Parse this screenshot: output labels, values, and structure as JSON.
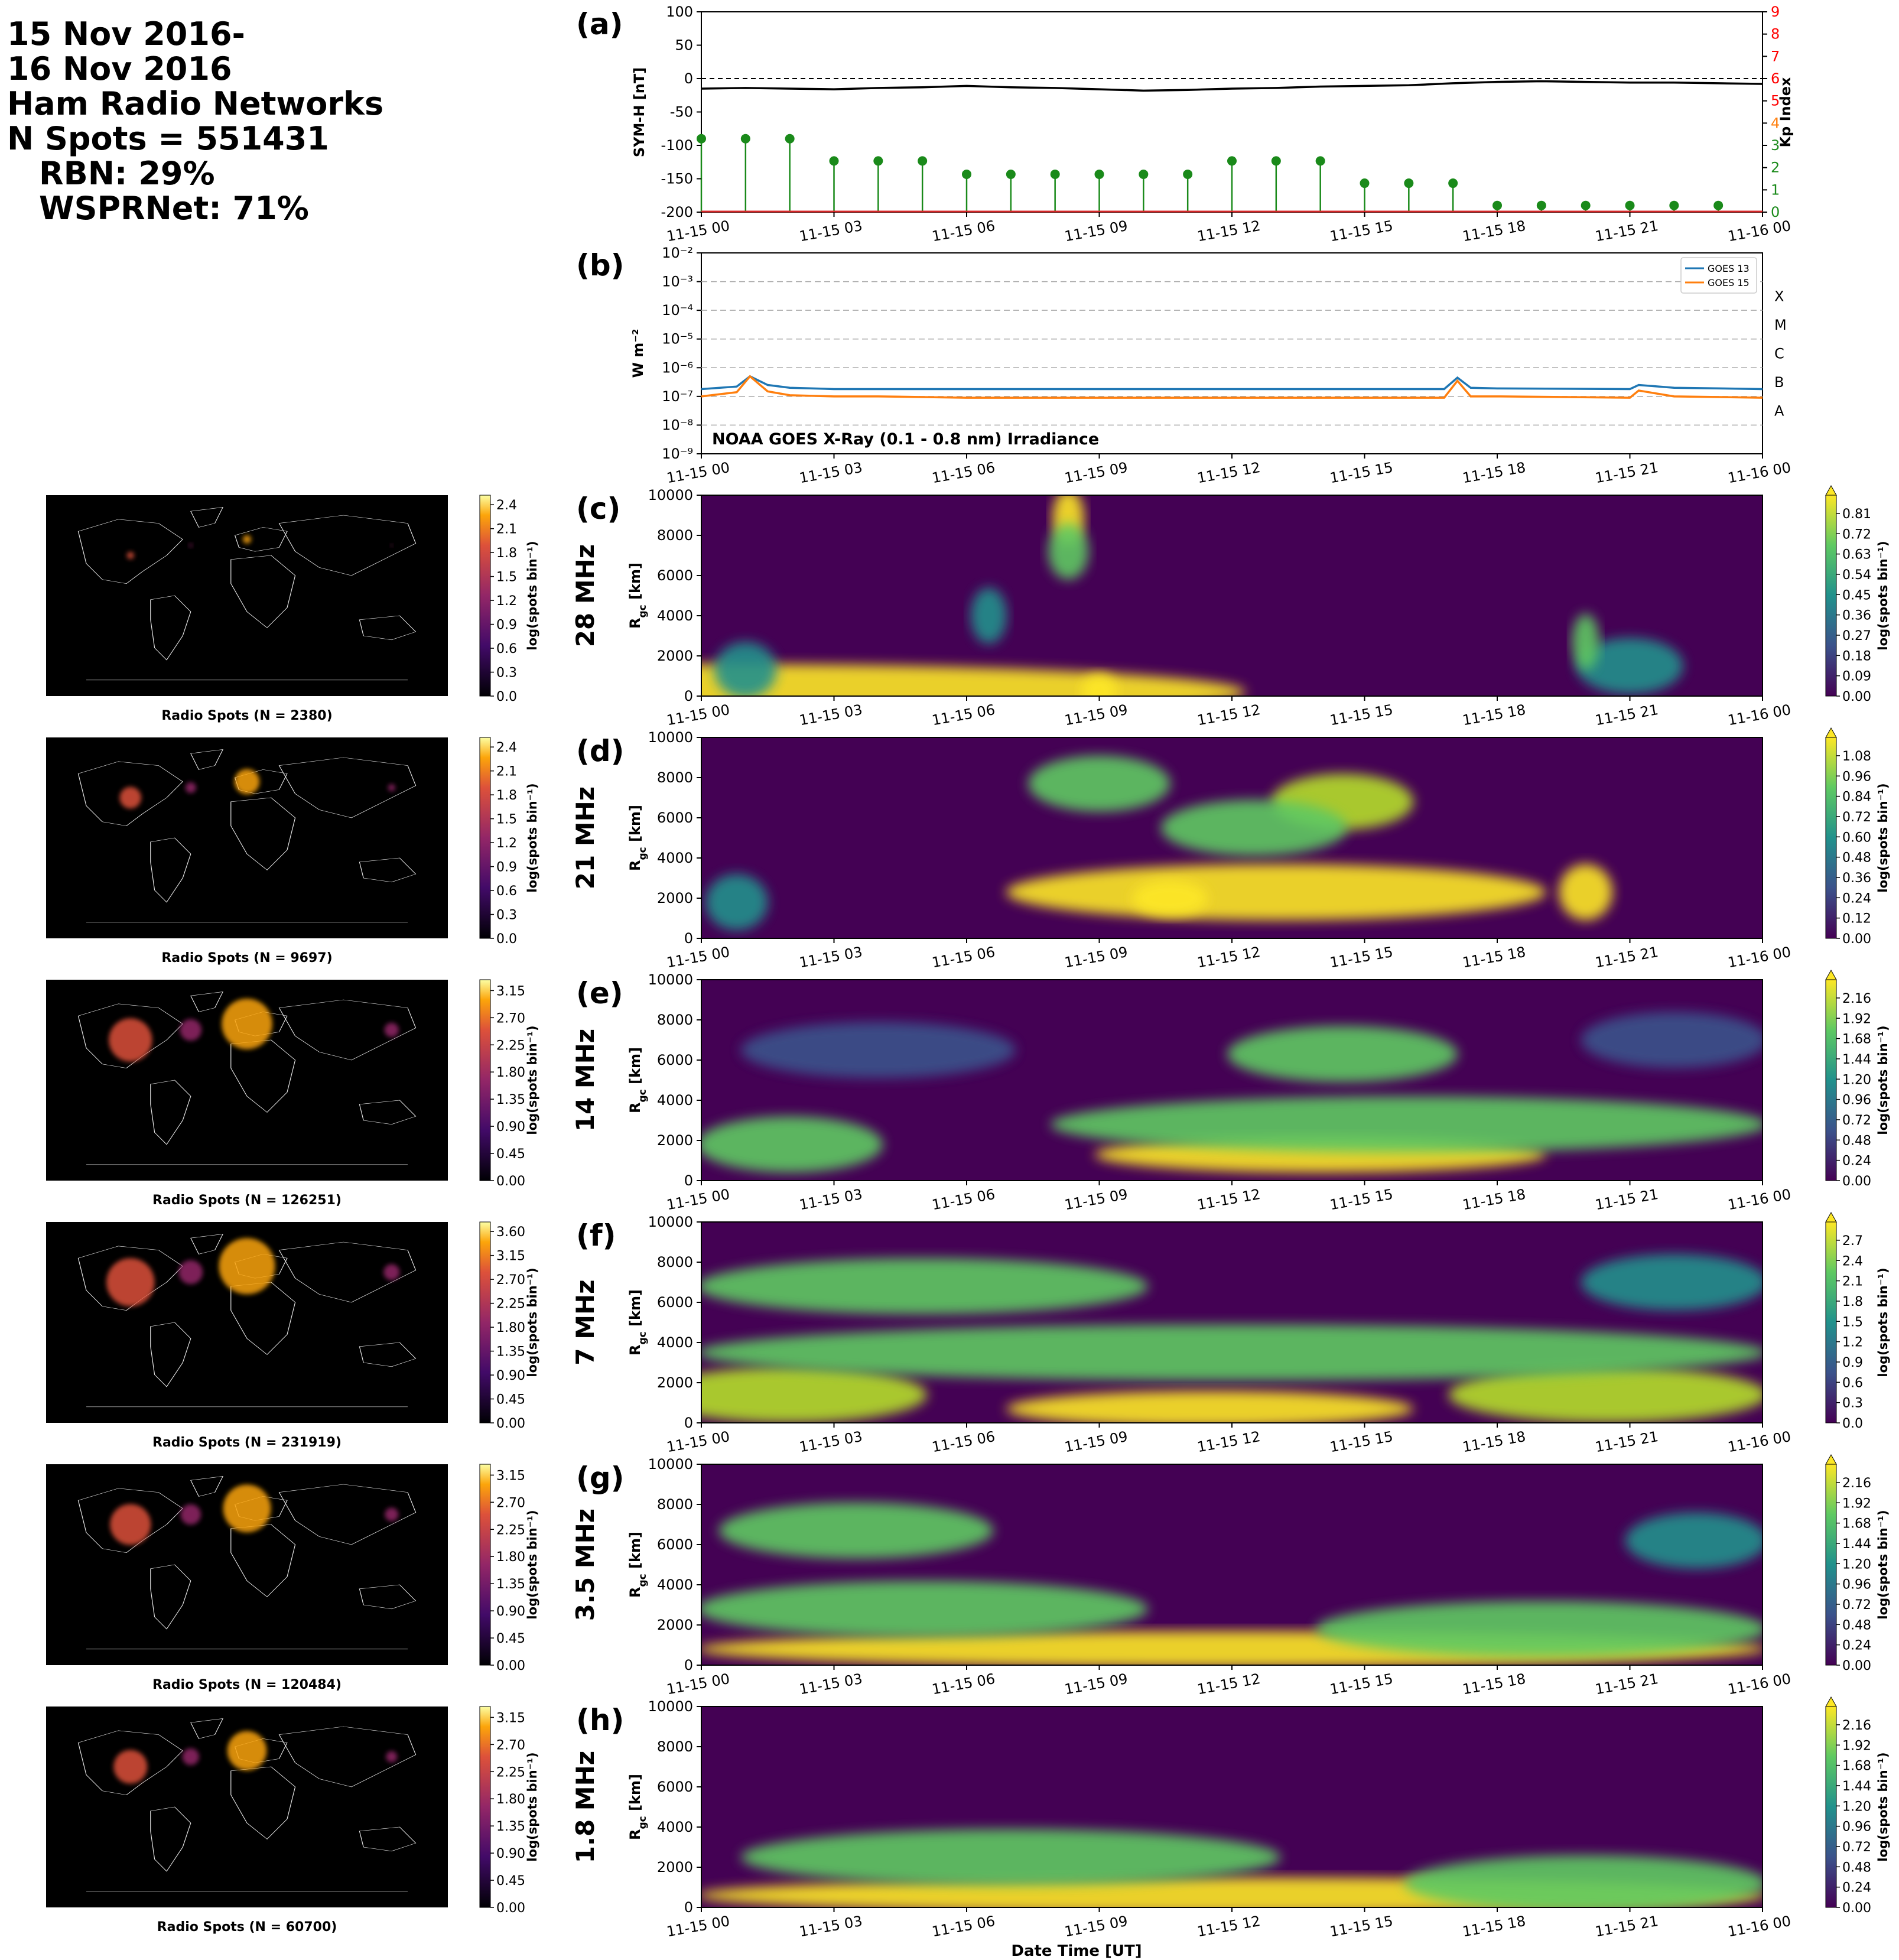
{
  "header": {
    "lines": [
      "15 Nov 2016-",
      "16 Nov 2016",
      "Ham Radio Networks",
      "N Spots = 551431",
      "RBN: 29%",
      "WSPRNet: 71%"
    ]
  },
  "time_axis": {
    "tick_labels": [
      "11-15 00",
      "11-15 03",
      "11-15 06",
      "11-15 09",
      "11-15 12",
      "11-15 15",
      "11-15 18",
      "11-15 21",
      "11-16 00"
    ],
    "hours": [
      0,
      3,
      6,
      9,
      12,
      15,
      18,
      21,
      24
    ],
    "xlabel": "Date Time [UT]"
  },
  "colors": {
    "symh_line": "#000000",
    "kp_stem": "#1a8a1a",
    "kp_axis": "#ff0000",
    "goes13": "#1f77b4",
    "goes15": "#ff7f0e",
    "map_bg": "#000000",
    "viridis_low": "#440154",
    "viridis_high": "#fde725"
  },
  "chart_data": [
    {
      "panel": "(a)",
      "type": "line",
      "ylabel": "SYM-H [nT]",
      "ylim": [
        -200,
        100
      ],
      "yticks": [
        100,
        50,
        0,
        -50,
        -100,
        -150,
        -200
      ],
      "x_hours": [
        0,
        1,
        2,
        3,
        4,
        5,
        6,
        7,
        8,
        9,
        10,
        11,
        12,
        13,
        14,
        15,
        16,
        17,
        18,
        19,
        20,
        21,
        22,
        23,
        24
      ],
      "symh": [
        -15,
        -14,
        -15,
        -16,
        -14,
        -13,
        -11,
        -13,
        -14,
        -16,
        -18,
        -17,
        -15,
        -14,
        -12,
        -11,
        -10,
        -7,
        -5,
        -4,
        -5,
        -6,
        -6,
        -7,
        -8
      ],
      "secondary": {
        "type": "stem",
        "ylabel": "Kp Index",
        "ylim": [
          0,
          9
        ],
        "yticks": [
          0,
          1,
          2,
          3,
          4,
          5,
          6,
          7,
          8,
          9
        ],
        "x_hours": [
          0,
          1,
          2,
          3,
          4,
          5,
          6,
          7,
          8,
          9,
          10,
          11,
          12,
          13,
          14,
          15,
          16,
          17,
          18,
          19,
          20,
          21,
          22,
          23
        ],
        "kp": [
          3.3,
          3.3,
          3.3,
          2.3,
          2.3,
          2.3,
          1.7,
          1.7,
          1.7,
          1.7,
          1.7,
          1.7,
          2.3,
          2.3,
          2.3,
          1.3,
          1.3,
          1.3,
          0.3,
          0.3,
          0.3,
          0.3,
          0.3,
          0.3
        ]
      }
    },
    {
      "panel": "(b)",
      "type": "line",
      "ylabel": "W m⁻²",
      "yscale": "log",
      "ylim_exponent": [
        -9,
        -2
      ],
      "ytick_labels": [
        "10⁻²",
        "10⁻³",
        "10⁻⁴",
        "10⁻⁵",
        "10⁻⁶",
        "10⁻⁷",
        "10⁻⁸",
        "10⁻⁹"
      ],
      "flare_classes": [
        "X",
        "M",
        "C",
        "B",
        "A"
      ],
      "annotation": "NOAA GOES X-Ray (0.1 - 0.8 nm) Irradiance",
      "x_hours": [
        0,
        0.8,
        1.1,
        1.5,
        2,
        3,
        4,
        6,
        9,
        12,
        16.8,
        17.1,
        17.4,
        18,
        21,
        21.2,
        22,
        24
      ],
      "series": [
        {
          "name": "GOES 13",
          "values": [
            1.8e-07,
            2.2e-07,
            5e-07,
            2.5e-07,
            2e-07,
            1.8e-07,
            1.8e-07,
            1.8e-07,
            1.8e-07,
            1.8e-07,
            1.8e-07,
            4.5e-07,
            2e-07,
            1.9e-07,
            1.8e-07,
            2.5e-07,
            2e-07,
            1.8e-07
          ]
        },
        {
          "name": "GOES 15",
          "values": [
            1e-07,
            1.4e-07,
            5e-07,
            1.5e-07,
            1.1e-07,
            1e-07,
            1e-07,
            9e-08,
            9e-08,
            9e-08,
            9e-08,
            3.5e-07,
            1e-07,
            1e-07,
            9e-08,
            1.6e-07,
            1e-07,
            9e-08
          ]
        }
      ]
    },
    {
      "panel": "(c)",
      "type": "heatmap",
      "band": "28 MHz",
      "ylabel": "R_gc [km]",
      "ylim": [
        0,
        10000
      ],
      "yticks": [
        0,
        2000,
        4000,
        6000,
        8000,
        10000
      ],
      "colorbar": {
        "label": "log(spots bin⁻¹)",
        "ticks": [
          "0.00",
          "0.09",
          "0.18",
          "0.27",
          "0.36",
          "0.45",
          "0.54",
          "0.63",
          "0.72",
          "0.81"
        ]
      },
      "map": {
        "label": "Radio Spots (N = 2380)",
        "colorbar_ticks": [
          "0.0",
          "0.3",
          "0.6",
          "0.9",
          "1.2",
          "1.5",
          "1.8",
          "2.1",
          "2.4"
        ]
      },
      "blobs": [
        [
          0.2,
          200,
          24,
          0.9
        ],
        [
          9,
          200,
          0.6,
          1.0
        ],
        [
          8.3,
          8900,
          0.5,
          0.9
        ],
        [
          8.3,
          7200,
          0.7,
          0.6
        ],
        [
          21,
          1500,
          2.2,
          0.4
        ],
        [
          20,
          2700,
          0.4,
          0.5
        ],
        [
          1,
          1300,
          1.2,
          0.3
        ],
        [
          6.5,
          4000,
          0.6,
          0.3
        ]
      ]
    },
    {
      "panel": "(d)",
      "type": "heatmap",
      "band": "21 MHz",
      "ylabel": "R_gc [km]",
      "ylim": [
        0,
        10000
      ],
      "yticks": [
        0,
        2000,
        4000,
        6000,
        8000,
        10000
      ],
      "colorbar": {
        "label": "log(spots bin⁻¹)",
        "ticks": [
          "0.00",
          "0.12",
          "0.24",
          "0.36",
          "0.48",
          "0.60",
          "0.72",
          "0.84",
          "0.96",
          "1.08"
        ]
      },
      "map": {
        "label": "Radio Spots (N = 9697)",
        "colorbar_ticks": [
          "0.0",
          "0.3",
          "0.6",
          "0.9",
          "1.2",
          "1.5",
          "1.8",
          "2.1",
          "2.4"
        ]
      },
      "blobs": [
        [
          13,
          2300,
          12,
          0.85
        ],
        [
          10.6,
          2000,
          1.5,
          1.0
        ],
        [
          14.5,
          6800,
          3,
          0.8
        ],
        [
          12.5,
          5500,
          4,
          0.45
        ],
        [
          20,
          2300,
          1,
          0.9
        ],
        [
          9,
          7700,
          3,
          0.5
        ],
        [
          0.8,
          1800,
          1.2,
          0.3
        ]
      ]
    },
    {
      "panel": "(e)",
      "type": "heatmap",
      "band": "14 MHz",
      "ylabel": "R_gc [km]",
      "ylim": [
        0,
        10000
      ],
      "yticks": [
        0,
        2000,
        4000,
        6000,
        8000,
        10000
      ],
      "colorbar": {
        "label": "log(spots bin⁻¹)",
        "ticks": [
          "0.00",
          "0.24",
          "0.48",
          "0.72",
          "0.96",
          "1.20",
          "1.44",
          "1.68",
          "1.92",
          "2.16"
        ]
      },
      "map": {
        "label": "Radio Spots (N = 126251)",
        "colorbar_ticks": [
          "0.00",
          "0.45",
          "0.90",
          "1.35",
          "1.80",
          "2.25",
          "2.70",
          "3.15"
        ]
      },
      "blobs": [
        [
          14,
          1300,
          10,
          1.0
        ],
        [
          2,
          1800,
          4,
          0.5
        ],
        [
          14.5,
          6300,
          5,
          0.45
        ],
        [
          16,
          2800,
          16,
          0.45
        ],
        [
          4,
          6500,
          6,
          0.15
        ],
        [
          22,
          7000,
          4,
          0.2
        ]
      ]
    },
    {
      "panel": "(f)",
      "type": "heatmap",
      "band": "7 MHz",
      "ylabel": "R_gc [km]",
      "ylim": [
        0,
        10000
      ],
      "yticks": [
        0,
        2000,
        4000,
        6000,
        8000,
        10000
      ],
      "colorbar": {
        "label": "log(spots bin⁻¹)",
        "ticks": [
          "0.0",
          "0.3",
          "0.6",
          "0.9",
          "1.2",
          "1.5",
          "1.8",
          "2.1",
          "2.4",
          "2.7"
        ]
      },
      "map": {
        "label": "Radio Spots (N = 231919)",
        "colorbar_ticks": [
          "0.00",
          "0.45",
          "0.90",
          "1.35",
          "1.80",
          "2.25",
          "2.70",
          "3.15",
          "3.60"
        ]
      },
      "blobs": [
        [
          11.5,
          700,
          9,
          1.0
        ],
        [
          2,
          1400,
          6,
          0.8
        ],
        [
          20.5,
          1400,
          7,
          0.65
        ],
        [
          5,
          6800,
          10,
          0.45
        ],
        [
          12,
          3500,
          24,
          0.45
        ],
        [
          22,
          7000,
          4,
          0.35
        ]
      ]
    },
    {
      "panel": "(g)",
      "type": "heatmap",
      "band": "3.5 MHz",
      "ylabel": "R_gc [km]",
      "ylim": [
        0,
        10000
      ],
      "yticks": [
        0,
        2000,
        4000,
        6000,
        8000,
        10000
      ],
      "colorbar": {
        "label": "log(spots bin⁻¹)",
        "ticks": [
          "0.00",
          "0.24",
          "0.48",
          "0.72",
          "0.96",
          "1.20",
          "1.44",
          "1.68",
          "1.92",
          "2.16"
        ]
      },
      "map": {
        "label": "Radio Spots (N = 120484)",
        "colorbar_ticks": [
          "0.00",
          "0.45",
          "0.90",
          "1.35",
          "1.80",
          "2.25",
          "2.70",
          "3.15"
        ]
      },
      "blobs": [
        [
          12,
          800,
          24,
          0.95
        ],
        [
          3.5,
          6700,
          6,
          0.5
        ],
        [
          5,
          2800,
          10,
          0.55
        ],
        [
          19,
          1800,
          10,
          0.5
        ],
        [
          22.5,
          6200,
          3,
          0.4
        ]
      ]
    },
    {
      "panel": "(h)",
      "type": "heatmap",
      "band": "1.8 MHz",
      "ylabel": "R_gc [km]",
      "ylim": [
        0,
        10000
      ],
      "yticks": [
        0,
        2000,
        4000,
        6000,
        8000,
        10000
      ],
      "colorbar": {
        "label": "log(spots bin⁻¹)",
        "ticks": [
          "0.00",
          "0.24",
          "0.48",
          "0.72",
          "0.96",
          "1.20",
          "1.44",
          "1.68",
          "1.92",
          "2.16"
        ]
      },
      "map": {
        "label": "Radio Spots (N = 60700)",
        "colorbar_ticks": [
          "0.00",
          "0.45",
          "0.90",
          "1.35",
          "1.80",
          "2.25",
          "2.70",
          "3.15"
        ]
      },
      "blobs": [
        [
          12,
          600,
          24,
          0.95
        ],
        [
          7,
          2500,
          12,
          0.55
        ],
        [
          20,
          1200,
          8,
          0.45
        ]
      ]
    }
  ]
}
